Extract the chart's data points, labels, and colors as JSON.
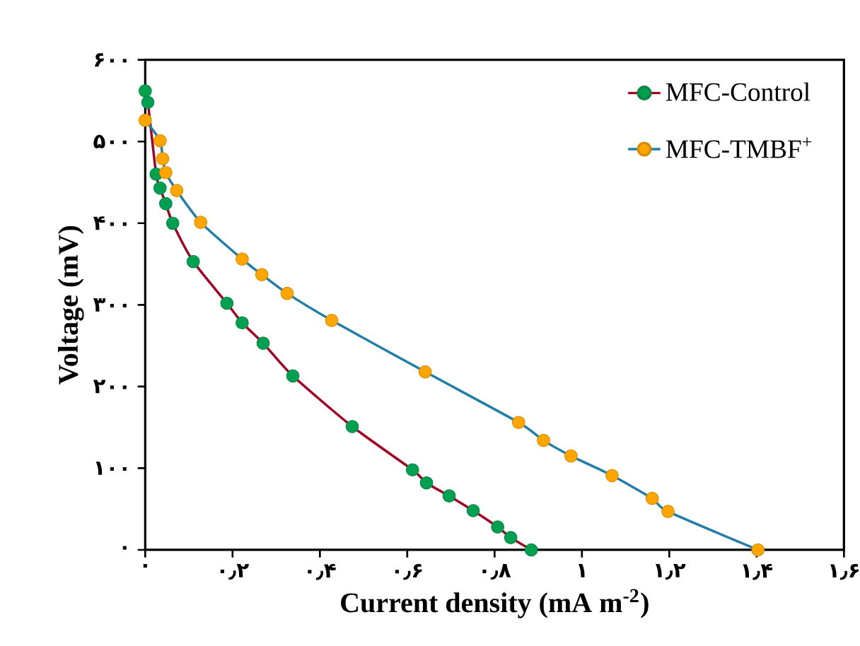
{
  "chart_data": {
    "type": "line",
    "xlabel": "Current density (mA m$^{-2}$)",
    "ylabel": "Voltage (mV)",
    "xlim": [
      0,
      1.6
    ],
    "ylim": [
      0,
      600
    ],
    "xticks": [
      {
        "value": 0,
        "label": "۰"
      },
      {
        "value": 0.2,
        "label": "۰٫۲"
      },
      {
        "value": 0.4,
        "label": "۰٫۴"
      },
      {
        "value": 0.6,
        "label": "۰٫۶"
      },
      {
        "value": 0.8,
        "label": "۰٫۸"
      },
      {
        "value": 1,
        "label": "۱"
      },
      {
        "value": 1.2,
        "label": "۱٫۲"
      },
      {
        "value": 1.4,
        "label": "۱٫۴"
      },
      {
        "value": 1.6,
        "label": "۱٫۶"
      }
    ],
    "yticks": [
      {
        "value": 0,
        "label": "۰"
      },
      {
        "value": 100,
        "label": "۱۰۰"
      },
      {
        "value": 200,
        "label": "۲۰۰"
      },
      {
        "value": 300,
        "label": "۳۰۰"
      },
      {
        "value": 400,
        "label": "۴۰۰"
      },
      {
        "value": 500,
        "label": "۵۰۰"
      },
      {
        "value": 600,
        "label": "۶۰۰"
      }
    ],
    "legend": "top right",
    "marker": "circle",
    "line_style": "solid",
    "grid": false,
    "series": [
      {
        "name": "MFC-Control",
        "color": "#a50021",
        "x": [
          0,
          0.006,
          0.025,
          0.034,
          0.047,
          0.063,
          0.11,
          0.187,
          0.222,
          0.27,
          0.338,
          0.474,
          0.612,
          0.644,
          0.696,
          0.751,
          0.807,
          0.837,
          0.884
        ],
        "values": [
          562,
          548,
          460,
          443,
          424,
          400,
          353,
          302,
          278,
          253,
          213,
          151,
          98,
          82,
          66,
          48,
          28,
          15,
          0
        ],
        "colors": [
          "#00a050",
          "#00a050",
          "#00a050",
          "#00a050",
          "#00a050",
          "#00a050",
          "#00a050",
          "#00a050",
          "#00a050",
          "#00a050",
          "#00a050",
          "#00a050",
          "#00a050",
          "#00a050",
          "#00a050",
          "#00a050",
          "#00a050",
          "#00a050",
          "#00a050"
        ]
      },
      {
        "name": "MFC-TMBF$^{+}$",
        "color": "#1f7fa8",
        "x": [
          0,
          0.034,
          0.04,
          0.047,
          0.072,
          0.127,
          0.222,
          0.267,
          0.325,
          0.427,
          0.641,
          0.855,
          0.912,
          0.975,
          1.069,
          1.161,
          1.197,
          1.403
        ],
        "values": [
          526,
          501,
          479,
          462,
          440,
          401,
          356,
          337,
          314,
          281,
          218,
          156,
          134,
          115,
          91,
          63,
          47,
          0
        ],
        "colors": [
          "#ffa500",
          "#ffa500",
          "#ffa500",
          "#ffa500",
          "#ffa500",
          "#ffa500",
          "#ffa500",
          "#ffa500",
          "#ffa500",
          "#ffa500",
          "#ffa500",
          "#ffa500",
          "#ffa500",
          "#ffa500",
          "#ffa500",
          "#ffa500",
          "#ffa500",
          "#ffa500"
        ]
      }
    ]
  }
}
